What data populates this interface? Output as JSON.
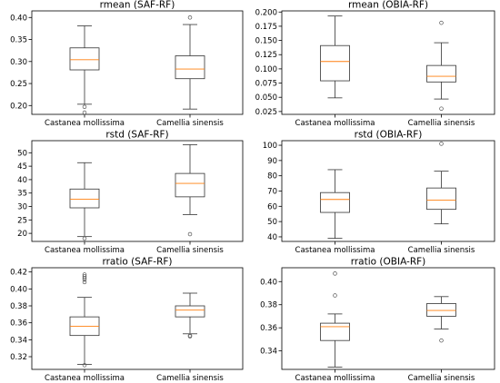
{
  "chart_data": [
    {
      "type": "box",
      "title": "rmean (SAF-RF)",
      "categories": [
        "Castanea mollissima",
        "Camellia sinensis"
      ],
      "ylim": [
        0.18,
        0.415
      ],
      "yticks": [
        0.2,
        0.25,
        0.3,
        0.35,
        0.4
      ],
      "ytick_labels": [
        "0.20",
        "0.25",
        "0.30",
        "0.35",
        "0.40"
      ],
      "boxes": [
        {
          "whislo": 0.203,
          "q1": 0.281,
          "med": 0.304,
          "q3": 0.331,
          "whishi": 0.381,
          "fliers": [
            0.197,
            0.184
          ]
        },
        {
          "whislo": 0.192,
          "q1": 0.261,
          "med": 0.283,
          "q3": 0.313,
          "whishi": 0.384,
          "fliers": [
            0.4
          ]
        }
      ]
    },
    {
      "type": "box",
      "title": "rmean (OBIA-RF)",
      "categories": [
        "Castanea mollissima",
        "Camellia sinensis"
      ],
      "ylim": [
        0.02,
        0.202
      ],
      "yticks": [
        0.025,
        0.05,
        0.075,
        0.1,
        0.125,
        0.15,
        0.175,
        0.2
      ],
      "ytick_labels": [
        "0.025",
        "0.050",
        "0.075",
        "0.100",
        "0.125",
        "0.150",
        "0.175",
        "0.200"
      ],
      "boxes": [
        {
          "whislo": 0.049,
          "q1": 0.079,
          "med": 0.113,
          "q3": 0.141,
          "whishi": 0.193,
          "fliers": []
        },
        {
          "whislo": 0.047,
          "q1": 0.077,
          "med": 0.087,
          "q3": 0.106,
          "whishi": 0.146,
          "fliers": [
            0.181,
            0.03
          ]
        }
      ]
    },
    {
      "type": "box",
      "title": "rstd (SAF-RF)",
      "categories": [
        "Castanea mollissima",
        "Camellia sinensis"
      ],
      "ylim": [
        17,
        54.5
      ],
      "yticks": [
        20,
        25,
        30,
        35,
        40,
        45,
        50
      ],
      "ytick_labels": [
        "20",
        "25",
        "30",
        "35",
        "40",
        "45",
        "50"
      ],
      "boxes": [
        {
          "whislo": 18.8,
          "q1": 29.5,
          "med": 32.7,
          "q3": 36.5,
          "whishi": 46.3,
          "fliers": [
            18.1
          ]
        },
        {
          "whislo": 27.0,
          "q1": 33.6,
          "med": 38.6,
          "q3": 42.3,
          "whishi": 53.0,
          "fliers": [
            19.7
          ]
        }
      ]
    },
    {
      "type": "box",
      "title": "rstd (OBIA-RF)",
      "categories": [
        "Castanea mollissima",
        "Camellia sinensis"
      ],
      "ylim": [
        37,
        103
      ],
      "yticks": [
        40,
        50,
        60,
        70,
        80,
        90,
        100
      ],
      "ytick_labels": [
        "40",
        "50",
        "60",
        "70",
        "80",
        "90",
        "100"
      ],
      "boxes": [
        {
          "whislo": 39.0,
          "q1": 56.0,
          "med": 64.5,
          "q3": 69.0,
          "whishi": 84.0,
          "fliers": []
        },
        {
          "whislo": 48.5,
          "q1": 58.0,
          "med": 64.0,
          "q3": 72.0,
          "whishi": 83.0,
          "fliers": [
            101.0
          ]
        }
      ]
    },
    {
      "type": "box",
      "title": "rratio (SAF-RF)",
      "categories": [
        "Castanea mollissima",
        "Camellia sinensis"
      ],
      "ylim": [
        0.305,
        0.425
      ],
      "yticks": [
        0.32,
        0.34,
        0.36,
        0.38,
        0.4,
        0.42
      ],
      "ytick_labels": [
        "0.32",
        "0.34",
        "0.36",
        "0.38",
        "0.40",
        "0.42"
      ],
      "boxes": [
        {
          "whislo": 0.311,
          "q1": 0.345,
          "med": 0.356,
          "q3": 0.367,
          "whishi": 0.39,
          "fliers": [
            0.408,
            0.411,
            0.413,
            0.415,
            0.417,
            0.31
          ]
        },
        {
          "whislo": 0.347,
          "q1": 0.367,
          "med": 0.375,
          "q3": 0.38,
          "whishi": 0.395,
          "fliers": [
            0.345,
            0.344
          ]
        }
      ]
    },
    {
      "type": "box",
      "title": "rratio (OBIA-RF)",
      "categories": [
        "Castanea mollissima",
        "Camellia sinensis"
      ],
      "ylim": [
        0.324,
        0.412
      ],
      "yticks": [
        0.34,
        0.36,
        0.38,
        0.4
      ],
      "ytick_labels": [
        "0.34",
        "0.36",
        "0.38",
        "0.40"
      ],
      "boxes": [
        {
          "whislo": 0.326,
          "q1": 0.349,
          "med": 0.361,
          "q3": 0.364,
          "whishi": 0.372,
          "fliers": [
            0.388,
            0.407
          ]
        },
        {
          "whislo": 0.359,
          "q1": 0.37,
          "med": 0.375,
          "q3": 0.381,
          "whishi": 0.387,
          "fliers": [
            0.349
          ]
        }
      ]
    }
  ],
  "colors": {
    "box": "#333333",
    "median": "#ff7f0e",
    "axes": "#000000"
  }
}
